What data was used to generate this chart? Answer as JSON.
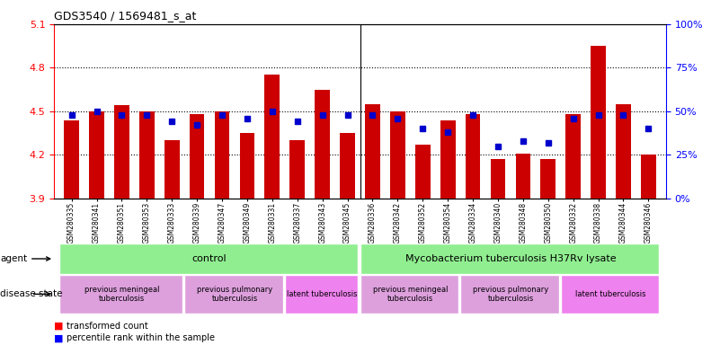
{
  "title": "GDS3540 / 1569481_s_at",
  "samples": [
    "GSM280335",
    "GSM280341",
    "GSM280351",
    "GSM280353",
    "GSM280333",
    "GSM280339",
    "GSM280347",
    "GSM280349",
    "GSM280331",
    "GSM280337",
    "GSM280343",
    "GSM280345",
    "GSM280336",
    "GSM280342",
    "GSM280352",
    "GSM280354",
    "GSM280334",
    "GSM280340",
    "GSM280348",
    "GSM280350",
    "GSM280332",
    "GSM280338",
    "GSM280344",
    "GSM280346"
  ],
  "bar_values": [
    4.44,
    4.5,
    4.54,
    4.5,
    4.3,
    4.48,
    4.5,
    4.35,
    4.75,
    4.3,
    4.65,
    4.35,
    4.55,
    4.5,
    4.27,
    4.44,
    4.48,
    4.17,
    4.21,
    4.17,
    4.48,
    4.95,
    4.55,
    4.2
  ],
  "percentile_values": [
    48,
    50,
    48,
    48,
    44,
    42,
    48,
    46,
    50,
    44,
    48,
    48,
    48,
    46,
    40,
    38,
    48,
    30,
    33,
    32,
    46,
    48,
    48,
    40
  ],
  "bar_color": "#cc0000",
  "percentile_color": "#0000cc",
  "ylim_left": [
    3.9,
    5.1
  ],
  "ylim_right": [
    0,
    100
  ],
  "yticks_left": [
    3.9,
    4.2,
    4.5,
    4.8,
    5.1
  ],
  "yticks_right": [
    0,
    25,
    50,
    75,
    100
  ],
  "ytick_labels_right": [
    "0%",
    "25%",
    "50%",
    "75%",
    "100%"
  ],
  "hlines": [
    4.2,
    4.5,
    4.8
  ],
  "agent_groups": [
    {
      "label": "control",
      "start": 0,
      "end": 12,
      "color": "#90EE90"
    },
    {
      "label": "Mycobacterium tuberculosis H37Rv lysate",
      "start": 12,
      "end": 24,
      "color": "#90EE90"
    }
  ],
  "disease_groups": [
    {
      "label": "previous meningeal\ntuberculosis",
      "start": 0,
      "end": 5,
      "color": "#DDA0DD"
    },
    {
      "label": "previous pulmonary\ntuberculosis",
      "start": 5,
      "end": 9,
      "color": "#DDA0DD"
    },
    {
      "label": "latent tuberculosis",
      "start": 9,
      "end": 12,
      "color": "#EE82EE"
    },
    {
      "label": "previous meningeal\ntuberculosis",
      "start": 12,
      "end": 16,
      "color": "#DDA0DD"
    },
    {
      "label": "previous pulmonary\ntuberculosis",
      "start": 16,
      "end": 20,
      "color": "#DDA0DD"
    },
    {
      "label": "latent tuberculosis",
      "start": 20,
      "end": 24,
      "color": "#EE82EE"
    }
  ]
}
